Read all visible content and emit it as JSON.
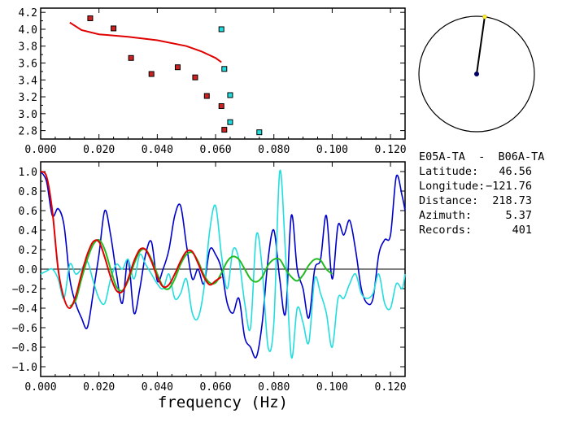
{
  "colors": {
    "background": "#ffffff",
    "axes": "#000000",
    "red": "#e00000",
    "blue": "#0000cc",
    "cyan": "#22dddd",
    "green": "#22bb22",
    "dark_red_marker": "#cc2222",
    "navy": "#000066",
    "yellow": "#ffee33"
  },
  "chart_data": [
    {
      "type": "scatter",
      "xlim": [
        0.0,
        0.125
      ],
      "ylim": [
        2.7,
        4.25
      ],
      "x_ticks": [
        "0.000",
        "0.020",
        "0.040",
        "0.060",
        "0.080",
        "0.100",
        "0.120"
      ],
      "y_ticks": [
        "2.8",
        "3.0",
        "3.2",
        "3.4",
        "3.6",
        "3.8",
        "4.0",
        "4.2"
      ],
      "series": [
        {
          "kind": "points",
          "color": "#cc2222",
          "points": [
            [
              0.017,
              4.13
            ],
            [
              0.025,
              4.01
            ],
            [
              0.031,
              3.66
            ],
            [
              0.038,
              3.47
            ],
            [
              0.047,
              3.55
            ],
            [
              0.053,
              3.43
            ],
            [
              0.057,
              3.21
            ],
            [
              0.062,
              3.09
            ],
            [
              0.063,
              2.81
            ]
          ]
        },
        {
          "kind": "points",
          "color": "#22dddd",
          "points": [
            [
              0.062,
              4.0
            ],
            [
              0.063,
              3.53
            ],
            [
              0.065,
              3.22
            ],
            [
              0.065,
              2.9
            ],
            [
              0.075,
              2.78
            ]
          ]
        },
        {
          "kind": "line",
          "color": "#e00000",
          "points": [
            [
              0.01,
              4.08
            ],
            [
              0.014,
              3.99
            ],
            [
              0.02,
              3.94
            ],
            [
              0.03,
              3.91
            ],
            [
              0.04,
              3.87
            ],
            [
              0.05,
              3.8
            ],
            [
              0.055,
              3.74
            ],
            [
              0.06,
              3.66
            ],
            [
              0.062,
              3.61
            ]
          ]
        }
      ]
    },
    {
      "type": "line",
      "xlabel": "frequency (Hz)",
      "xlim": [
        0.0,
        0.125
      ],
      "ylim": [
        -1.1,
        1.1
      ],
      "x_ticks": [
        "0.000",
        "0.020",
        "0.040",
        "0.060",
        "0.080",
        "0.100",
        "0.120"
      ],
      "y_ticks": [
        "-1.0",
        "-0.8",
        "-0.6",
        "-0.4",
        "-0.2",
        "0.0",
        "0.2",
        "0.4",
        "0.6",
        "0.8",
        "1.0"
      ],
      "series": [
        {
          "color": "#0000cc",
          "x": [
            0.0,
            0.002,
            0.004,
            0.006,
            0.008,
            0.01,
            0.012,
            0.014,
            0.016,
            0.018,
            0.02,
            0.022,
            0.024,
            0.026,
            0.028,
            0.03,
            0.032,
            0.034,
            0.036,
            0.038,
            0.04,
            0.042,
            0.044,
            0.046,
            0.048,
            0.05,
            0.052,
            0.054,
            0.056,
            0.058,
            0.06,
            0.062,
            0.064,
            0.066,
            0.068,
            0.07,
            0.072,
            0.074,
            0.076,
            0.078,
            0.08,
            0.082,
            0.084,
            0.086,
            0.088,
            0.09,
            0.092,
            0.094,
            0.096,
            0.098,
            0.1,
            0.102,
            0.104,
            0.106,
            0.108,
            0.11,
            0.112,
            0.114,
            0.116,
            0.118,
            0.12,
            0.122,
            0.124,
            0.125
          ],
          "values": [
            1.0,
            0.9,
            0.55,
            0.62,
            0.45,
            -0.1,
            -0.35,
            -0.5,
            -0.6,
            -0.25,
            0.15,
            0.6,
            0.35,
            -0.05,
            -0.35,
            0.1,
            -0.45,
            -0.2,
            0.15,
            0.28,
            -0.12,
            0.0,
            0.2,
            0.55,
            0.65,
            0.25,
            -0.1,
            0.0,
            -0.15,
            0.2,
            0.15,
            0.0,
            -0.35,
            -0.45,
            -0.3,
            -0.7,
            -0.8,
            -0.9,
            -0.55,
            0.1,
            0.4,
            -0.1,
            -0.45,
            0.55,
            0.0,
            -0.2,
            -0.5,
            0.0,
            0.1,
            0.55,
            -0.1,
            0.45,
            0.35,
            0.5,
            0.2,
            -0.2,
            -0.35,
            -0.3,
            0.15,
            0.3,
            0.35,
            0.95,
            0.75,
            0.6
          ]
        },
        {
          "color": "#22dddd",
          "x": [
            0.0,
            0.002,
            0.004,
            0.006,
            0.008,
            0.01,
            0.012,
            0.014,
            0.016,
            0.018,
            0.02,
            0.022,
            0.024,
            0.026,
            0.028,
            0.03,
            0.032,
            0.034,
            0.036,
            0.038,
            0.04,
            0.042,
            0.044,
            0.046,
            0.048,
            0.05,
            0.052,
            0.054,
            0.056,
            0.058,
            0.06,
            0.062,
            0.064,
            0.066,
            0.068,
            0.07,
            0.072,
            0.074,
            0.076,
            0.078,
            0.08,
            0.082,
            0.084,
            0.086,
            0.088,
            0.09,
            0.092,
            0.094,
            0.096,
            0.098,
            0.1,
            0.102,
            0.104,
            0.106,
            0.108,
            0.11,
            0.112,
            0.114,
            0.116,
            0.118,
            0.12,
            0.122,
            0.124,
            0.125
          ],
          "values": [
            -0.05,
            -0.02,
            0.0,
            -0.1,
            -0.3,
            0.05,
            -0.05,
            0.0,
            0.08,
            -0.12,
            -0.3,
            -0.35,
            -0.1,
            0.05,
            0.0,
            0.1,
            -0.1,
            0.15,
            0.05,
            -0.05,
            -0.15,
            -0.2,
            -0.05,
            -0.3,
            -0.25,
            -0.1,
            -0.45,
            -0.5,
            -0.2,
            0.4,
            0.65,
            0.15,
            -0.2,
            0.2,
            0.1,
            -0.35,
            -0.6,
            0.35,
            0.0,
            -0.8,
            -0.55,
            1.0,
            0.15,
            -0.9,
            -0.4,
            -0.55,
            -0.75,
            -0.1,
            -0.25,
            -0.45,
            -0.8,
            -0.3,
            -0.3,
            -0.15,
            -0.05,
            -0.25,
            -0.3,
            -0.25,
            -0.05,
            -0.35,
            -0.4,
            -0.15,
            -0.2,
            -0.05
          ]
        },
        {
          "color": "#22bb22",
          "x": [
            0.01,
            0.012,
            0.014,
            0.016,
            0.018,
            0.02,
            0.022,
            0.024,
            0.026,
            0.028,
            0.03,
            0.032,
            0.034,
            0.036,
            0.038,
            0.04,
            0.042,
            0.044,
            0.046,
            0.048,
            0.05,
            0.052,
            0.054,
            0.056,
            0.058,
            0.06,
            0.062,
            0.064,
            0.066,
            0.068,
            0.07,
            0.072,
            0.074,
            0.076,
            0.078,
            0.08,
            0.082,
            0.084,
            0.086,
            0.088,
            0.09,
            0.092,
            0.094,
            0.096,
            0.098,
            0.1
          ],
          "values": [
            -0.38,
            -0.32,
            -0.1,
            0.1,
            0.25,
            0.3,
            0.2,
            0.0,
            -0.18,
            -0.22,
            -0.12,
            0.05,
            0.18,
            0.2,
            0.1,
            -0.05,
            -0.18,
            -0.2,
            -0.1,
            0.05,
            0.15,
            0.17,
            0.08,
            -0.06,
            -0.14,
            -0.14,
            -0.04,
            0.08,
            0.13,
            0.1,
            0.0,
            -0.1,
            -0.13,
            -0.08,
            0.04,
            0.1,
            0.1,
            0.0,
            -0.08,
            -0.12,
            -0.06,
            0.04,
            0.1,
            0.09,
            0.0,
            -0.05
          ]
        },
        {
          "color": "#e00000",
          "x": [
            0.0,
            0.002,
            0.004,
            0.006,
            0.008,
            0.01,
            0.012,
            0.014,
            0.016,
            0.018,
            0.02,
            0.022,
            0.024,
            0.026,
            0.028,
            0.03,
            0.032,
            0.034,
            0.036,
            0.038,
            0.04,
            0.042,
            0.044,
            0.046,
            0.048,
            0.05,
            0.052,
            0.054,
            0.056,
            0.058,
            0.06,
            0.062
          ],
          "values": [
            1.0,
            0.95,
            0.6,
            0.0,
            -0.3,
            -0.4,
            -0.28,
            -0.05,
            0.15,
            0.28,
            0.28,
            0.12,
            -0.08,
            -0.22,
            -0.23,
            -0.1,
            0.08,
            0.2,
            0.2,
            0.08,
            -0.08,
            -0.18,
            -0.16,
            -0.05,
            0.08,
            0.18,
            0.18,
            0.06,
            -0.08,
            -0.16,
            -0.12,
            -0.08
          ]
        }
      ]
    }
  ],
  "map": {
    "station_angle_deg": 8,
    "station_radius_fraction": 1.0
  },
  "info": {
    "station_pair": "E05A-TA  -  B06A-TA",
    "rows": [
      {
        "label": "Latitude:",
        "value": "46.56"
      },
      {
        "label": "Longitude:",
        "value": "-121.76"
      },
      {
        "label": "Distance:",
        "value": "218.73"
      },
      {
        "label": "Azimuth:",
        "value": "5.37"
      },
      {
        "label": "Records:",
        "value": "401"
      }
    ]
  }
}
